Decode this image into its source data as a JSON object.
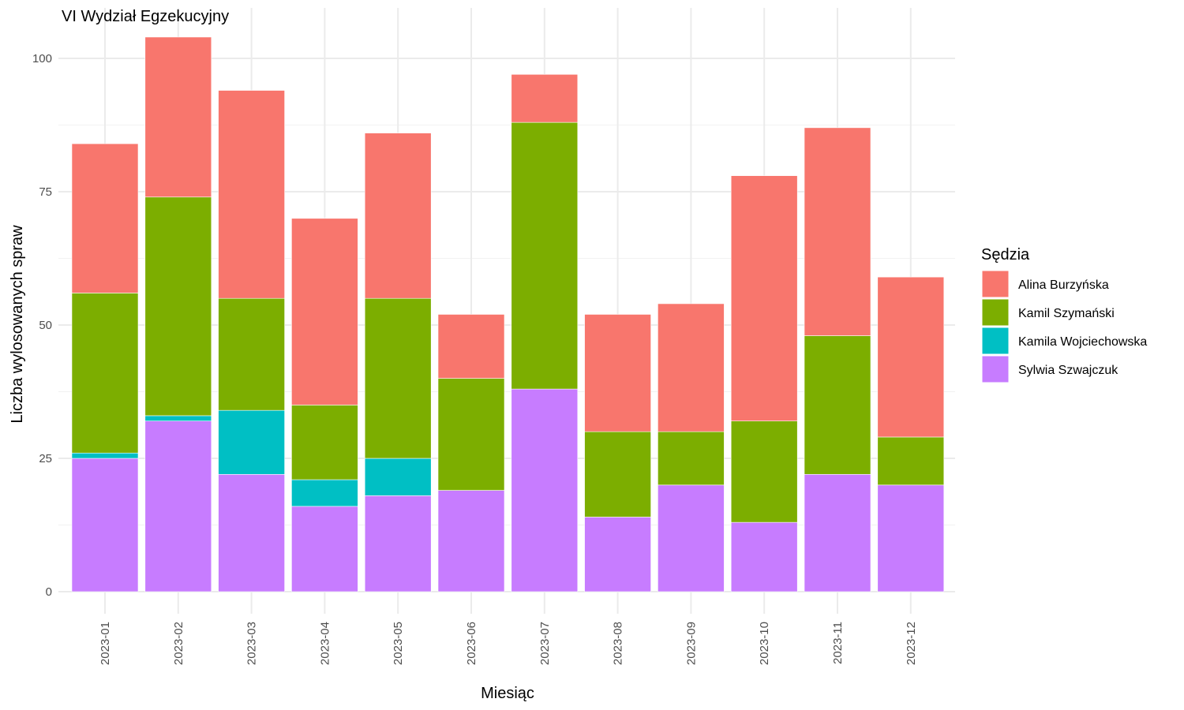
{
  "chart_data": {
    "type": "bar",
    "stacked": true,
    "title": "VI Wydział Egzekucyjny",
    "xlabel": "Miesiąc",
    "ylabel": "Liczba wylosowanych spraw",
    "ylim": [
      0,
      104
    ],
    "yticks": [
      0,
      25,
      50,
      75,
      100
    ],
    "grid": true,
    "legend_title": "Sędzia",
    "legend_position": "right",
    "categories": [
      "2023-01",
      "2023-02",
      "2023-03",
      "2023-04",
      "2023-05",
      "2023-06",
      "2023-07",
      "2023-08",
      "2023-09",
      "2023-10",
      "2023-11",
      "2023-12"
    ],
    "series": [
      {
        "name": "Alina Burzyńska",
        "color": "#F8766D",
        "values": [
          28,
          30,
          39,
          35,
          31,
          12,
          9,
          22,
          24,
          46,
          39,
          30
        ]
      },
      {
        "name": "Kamil Szymański",
        "color": "#7CAE00",
        "values": [
          30,
          41,
          21,
          14,
          30,
          21,
          50,
          16,
          10,
          19,
          26,
          9
        ]
      },
      {
        "name": "Kamila Wojciechowska",
        "color": "#00BFC4",
        "values": [
          1,
          1,
          12,
          5,
          7,
          0,
          0,
          0,
          0,
          0,
          0,
          0
        ]
      },
      {
        "name": "Sylwia Szwajczuk",
        "color": "#C77CFF",
        "values": [
          25,
          32,
          22,
          16,
          18,
          19,
          38,
          14,
          20,
          13,
          22,
          20
        ]
      }
    ]
  }
}
